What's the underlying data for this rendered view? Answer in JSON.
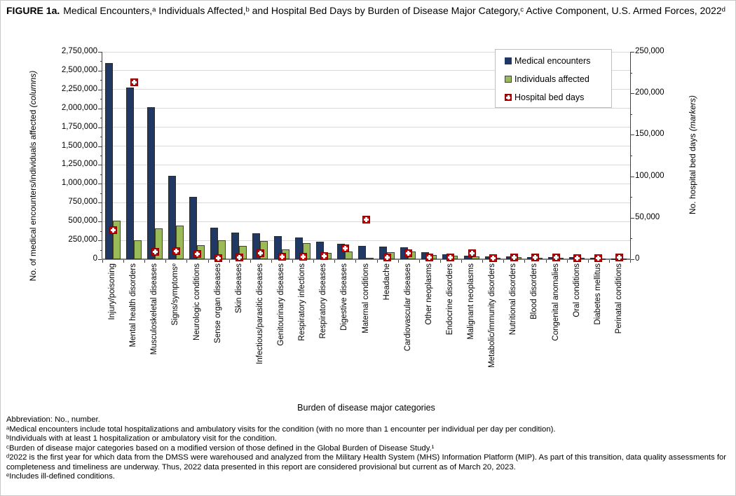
{
  "title": {
    "prefix": "FIGURE 1a.",
    "text": "Medical Encounters,ᵃ Individuals Affected,ᵇ and Hospital Bed Days by Burden of Disease Major Category,ᶜ Active Component, U.S. Armed Forces, 2022ᵈ"
  },
  "chart_data": {
    "type": "bar",
    "categories": [
      "Injury/poisoning",
      "Mental health disorders",
      "Musculoskeletal diseases",
      "Signs/symptomsᵉ",
      "Neurologic conditions",
      "Sense organ diseases",
      "Skin diseases",
      "Infectious/parasitic diseases",
      "Genitourinary diseases",
      "Respiratory infections",
      "Respiratory diseases",
      "Digestive diseases",
      "Maternal conditions",
      "Headache",
      "Cardiovascular diseases",
      "Other neoplasms",
      "Endocrine disorders",
      "Malignant neoplasms",
      "Metabolic/immunity disorders",
      "Nutritional disorders",
      "Blood disorders",
      "Congenital anomalies",
      "Oral conditions",
      "Diabetes mellitus",
      "Perinatal conditions"
    ],
    "series": [
      {
        "name": "Medical encounters",
        "axis": "left",
        "style": "column",
        "values": [
          2600000,
          2280000,
          2020000,
          1105000,
          830000,
          420000,
          355000,
          345000,
          310000,
          285000,
          230000,
          200000,
          175000,
          170000,
          155000,
          90000,
          62000,
          50000,
          38000,
          33000,
          30000,
          25000,
          25000,
          22000,
          8000
        ]
      },
      {
        "name": "Individuals affected",
        "axis": "left",
        "style": "column",
        "values": [
          510000,
          250000,
          405000,
          445000,
          185000,
          255000,
          180000,
          240000,
          130000,
          210000,
          80000,
          100000,
          15000,
          95000,
          100000,
          60000,
          45000,
          35000,
          22000,
          25000,
          20000,
          15000,
          18000,
          10000,
          5000
        ]
      },
      {
        "name": "Hospital bed days",
        "axis": "right",
        "style": "marker",
        "values": [
          35000,
          213000,
          9000,
          10000,
          6000,
          1500,
          2500,
          7000,
          3000,
          3000,
          4000,
          13000,
          48000,
          2000,
          7000,
          2500,
          2000,
          7500,
          1500,
          2000,
          2000,
          2000,
          1000,
          1500,
          2500
        ]
      }
    ],
    "left_axis": {
      "label_text": "No. of medical encounters/individuals affected ",
      "label_italic": "(columns)",
      "min": 0,
      "max": 2750000,
      "tick": 250000,
      "tick_labels": [
        "0",
        "250,000",
        "500,000",
        "750,000",
        "1,000,000",
        "1,250,000",
        "1,500,000",
        "1,750,000",
        "2,000,000",
        "2,250,000",
        "2,500,000",
        "2,750,000"
      ]
    },
    "right_axis": {
      "label_text": "No. hospital bed days ",
      "label_italic": "(markers)",
      "min": 0,
      "max": 250000,
      "tick": 50000,
      "tick_labels": [
        "0",
        "50,000",
        "100,000",
        "150,000",
        "200,000",
        "250,000"
      ]
    },
    "x_axis": {
      "title": "Burden of disease major categories"
    },
    "legend": {
      "position": "top-right",
      "items": [
        "Medical encounters",
        "Individuals affected",
        "Hospital bed days"
      ]
    },
    "grid": "horizontal",
    "colors": {
      "encounters": "#1F3864",
      "individuals": "#9BBB59",
      "bed_days": "#C00000",
      "gridline": "#D9D9D9",
      "axis_line": "#7F7F7F"
    }
  },
  "footnotes": [
    "Abbreviation: No., number.",
    "ᵃMedical encounters include total hospitalizations and ambulatory visits for the condition (with no more than 1 encounter per individual per day per condition).",
    "ᵇIndividuals with at least 1 hospitalization or ambulatory visit for the condition.",
    "ᶜBurden of disease major categories based on a modified version of those defined in the Global Burden of Disease Study.¹",
    "ᵈ2022 is the first year for which data from the DMSS were warehoused and analyzed from the Military Health System (MHS) Information Platform (MIP). As part of this transition, data quality assessments for completeness and timeliness are underway. Thus, 2022 data presented in this report are considered provisional but current as of March 20, 2023.",
    "ᵉIncludes ill-defined conditions."
  ]
}
